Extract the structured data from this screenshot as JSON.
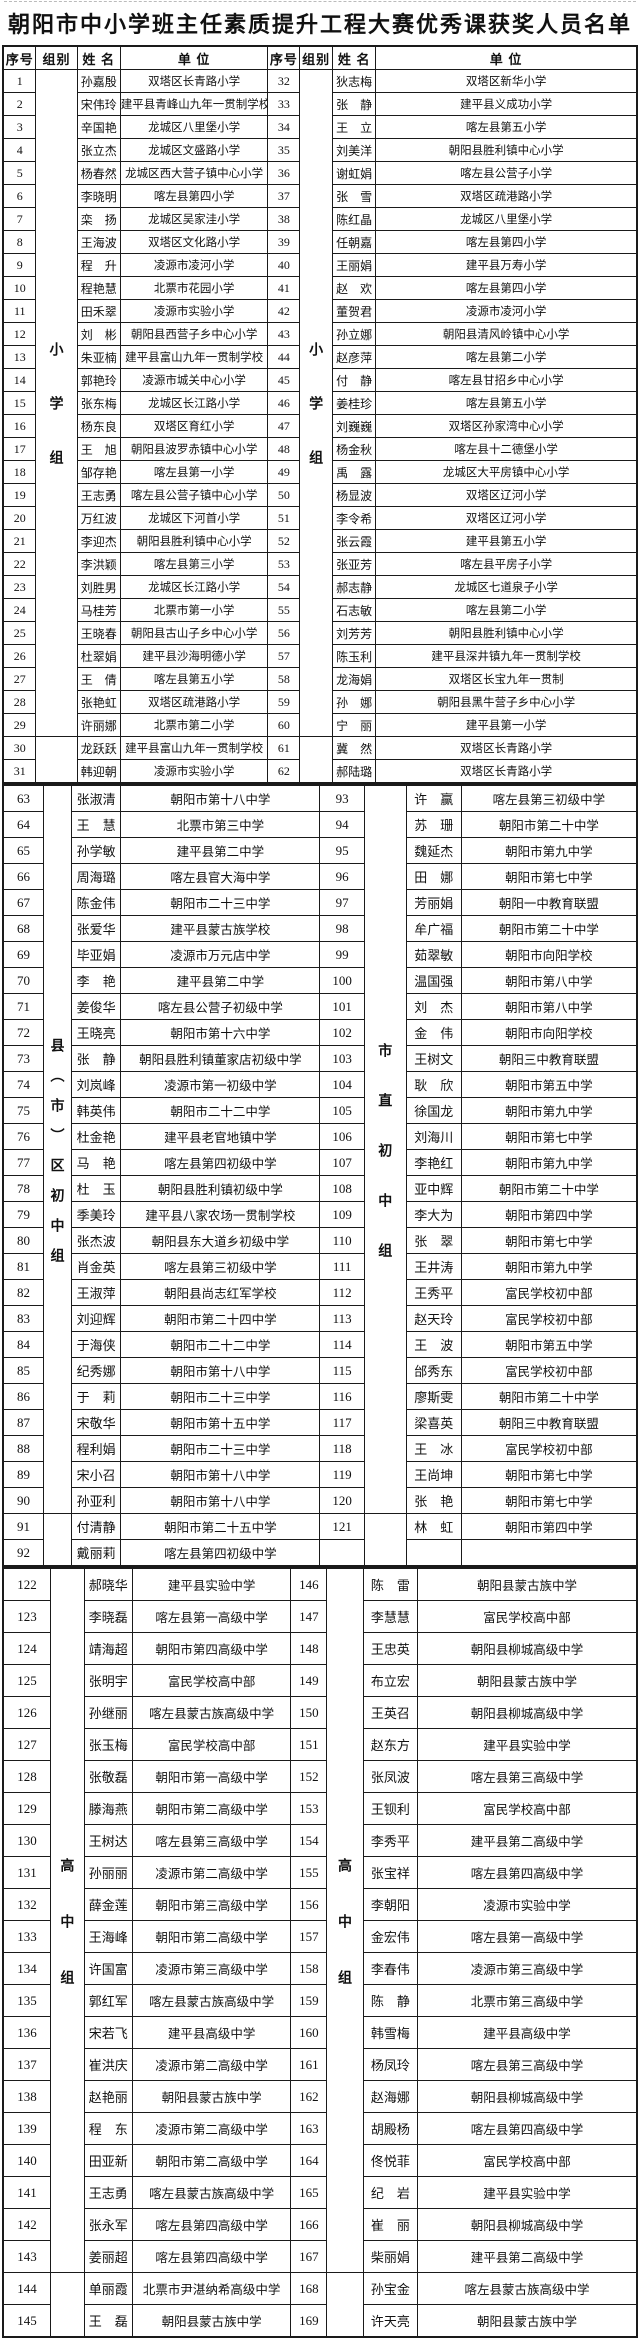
{
  "title": "朝阳市中小学班主任素质提升工程大赛优秀课获奖人员名单",
  "headers": {
    "no": "序号",
    "group": "组别",
    "name": "姓  名",
    "unit": "单   位"
  },
  "colors": {
    "border": "#1a1a1a",
    "text": "#111111",
    "background": "#ffffff"
  },
  "sections": [
    {
      "group_left": "小学组",
      "group_right": "小学组",
      "left_span": 29,
      "right_span": 29,
      "rows": [
        [
          "1",
          "孙嘉殷",
          "双塔区长青路小学",
          "32",
          "狄志梅",
          "双塔区新华小学"
        ],
        [
          "2",
          "宋伟玲",
          "建平县青峰山九年一贯制学校",
          "33",
          "张　静",
          "建平县义成功小学"
        ],
        [
          "3",
          "辛国艳",
          "龙城区八里堡小学",
          "34",
          "王　立",
          "喀左县第五小学"
        ],
        [
          "4",
          "张立杰",
          "龙城区文盛路小学",
          "35",
          "刘美洋",
          "朝阳县胜利镇中心小学"
        ],
        [
          "5",
          "杨春然",
          "龙城区西大营子镇中心小学",
          "36",
          "谢虹娟",
          "喀左县公营子小学"
        ],
        [
          "6",
          "李晓明",
          "喀左县第四小学",
          "37",
          "张　雪",
          "双塔区疏港路小学"
        ],
        [
          "7",
          "栾　扬",
          "龙城区吴家洼小学",
          "38",
          "陈红晶",
          "龙城区八里堡小学"
        ],
        [
          "8",
          "王海波",
          "双塔区文化路小学",
          "39",
          "任朝嘉",
          "喀左县第四小学"
        ],
        [
          "9",
          "程　升",
          "凌源市凌河小学",
          "40",
          "王丽娟",
          "建平县万寿小学"
        ],
        [
          "10",
          "程艳慧",
          "北票市花园小学",
          "41",
          "赵　欢",
          "喀左县第四小学"
        ],
        [
          "11",
          "田禾翠",
          "凌源市实验小学",
          "42",
          "董贺君",
          "凌源市凌河小学"
        ],
        [
          "12",
          "刘　彬",
          "朝阳县西营子乡中心小学",
          "43",
          "孙立娜",
          "朝阳县清风岭镇中心小学"
        ],
        [
          "13",
          "朱亚楠",
          "建平县富山九年一贯制学校",
          "44",
          "赵彦萍",
          "喀左县第二小学"
        ],
        [
          "14",
          "郭艳玲",
          "凌源市城关中心小学",
          "45",
          "付　静",
          "喀左县甘招乡中心小学"
        ],
        [
          "15",
          "张东梅",
          "龙城区长江路小学",
          "46",
          "姜桂珍",
          "喀左县第五小学"
        ],
        [
          "16",
          "杨东良",
          "双塔区育红小学",
          "47",
          "刘巍巍",
          "双塔区孙家湾中心小学"
        ],
        [
          "17",
          "王　旭",
          "朝阳县波罗赤镇中心小学",
          "48",
          "杨金秋",
          "喀左县十二德堡小学"
        ],
        [
          "18",
          "邹存艳",
          "喀左县第一小学",
          "49",
          "禹　露",
          "龙城区大平房镇中心小学"
        ],
        [
          "19",
          "王志勇",
          "喀左县公营子镇中心小学",
          "50",
          "杨显波",
          "双塔区辽河小学"
        ],
        [
          "20",
          "万红波",
          "龙城区下河首小学",
          "51",
          "李令希",
          "双塔区辽河小学"
        ],
        [
          "21",
          "李迎杰",
          "朝阳县胜利镇中心小学",
          "52",
          "张云霞",
          "建平县第五小学"
        ],
        [
          "22",
          "李洪颖",
          "喀左县第三小学",
          "53",
          "张亚芳",
          "喀左县平房子小学"
        ],
        [
          "23",
          "刘胜男",
          "龙城区长江路小学",
          "54",
          "郝志静",
          "龙城区七道泉子小学"
        ],
        [
          "24",
          "马桂芳",
          "北票市第一小学",
          "55",
          "石志敏",
          "喀左县第二小学"
        ],
        [
          "25",
          "王晓春",
          "朝阳县古山子乡中心小学",
          "56",
          "刘芳芳",
          "朝阳县胜利镇中心小学"
        ],
        [
          "26",
          "杜翠娟",
          "建平县沙海明德小学",
          "57",
          "陈玉利",
          "建平县深井镇九年一贯制学校"
        ],
        [
          "27",
          "王　倩",
          "喀左县第五小学",
          "58",
          "龙海娟",
          "双塔区长宝九年一贯制"
        ],
        [
          "28",
          "张艳虹",
          "双塔区疏港路小学",
          "59",
          "孙　娜",
          "朝阳县黑牛营子乡中心小学"
        ],
        [
          "29",
          "许丽娜",
          "北票市第二小学",
          "60",
          "宁　丽",
          "建平县第一小学"
        ],
        [
          "30",
          "龙跃跃",
          "建平县富山九年一贯制学校",
          "61",
          "冀　然",
          "双塔区长青路小学"
        ],
        [
          "31",
          "韩迎朝",
          "凌源市实验小学",
          "62",
          "郝陆璐",
          "双塔区长青路小学"
        ]
      ]
    },
    {
      "group_left": "县（市）区初中组",
      "group_right": "市直初中组",
      "left_span": 28,
      "right_span": 28,
      "rows": [
        [
          "63",
          "张淑清",
          "朝阳市第十八中学",
          "93",
          "许　赢",
          "喀左县第三初级中学"
        ],
        [
          "64",
          "王　慧",
          "北票市第三中学",
          "94",
          "苏　珊",
          "朝阳市第二十中学"
        ],
        [
          "65",
          "孙学敏",
          "建平县第二中学",
          "95",
          "魏延杰",
          "朝阳市第九中学"
        ],
        [
          "66",
          "周海璐",
          "喀左县官大海中学",
          "96",
          "田　娜",
          "朝阳市第七中学"
        ],
        [
          "67",
          "陈金伟",
          "朝阳市二十三中学",
          "97",
          "芳丽娟",
          "朝阳一中教育联盟"
        ],
        [
          "68",
          "张爱华",
          "建平县蒙古族学校",
          "98",
          "牟广福",
          "朝阳市第二十中学"
        ],
        [
          "69",
          "毕亚娟",
          "凌源市万元店中学",
          "99",
          "茹翠敏",
          "朝阳市向阳学校"
        ],
        [
          "70",
          "李　艳",
          "建平县第二中学",
          "100",
          "温国强",
          "朝阳市第八中学"
        ],
        [
          "71",
          "姜俊华",
          "喀左县公营子初级中学",
          "101",
          "刘　杰",
          "朝阳市第八中学"
        ],
        [
          "72",
          "王晓亮",
          "朝阳市第十六中学",
          "102",
          "金　伟",
          "朝阳市向阳学校"
        ],
        [
          "73",
          "张　静",
          "朝阳县胜利镇董家店初级中学",
          "103",
          "王树文",
          "朝阳三中教育联盟"
        ],
        [
          "74",
          "刘岚峰",
          "凌源市第一初级中学",
          "104",
          "耿　欣",
          "朝阳市第五中学"
        ],
        [
          "75",
          "韩英伟",
          "朝阳市二十二中学",
          "105",
          "徐国龙",
          "朝阳市第九中学"
        ],
        [
          "76",
          "杜金艳",
          "建平县老官地镇中学",
          "106",
          "刘海川",
          "朝阳市第七中学"
        ],
        [
          "77",
          "马　艳",
          "喀左县第四初级中学",
          "107",
          "李艳红",
          "朝阳市第九中学"
        ],
        [
          "78",
          "杜　玉",
          "朝阳县胜利镇初级中学",
          "108",
          "亚中辉",
          "朝阳市第二十中学"
        ],
        [
          "79",
          "季美玲",
          "建平县八家农场一贯制学校",
          "109",
          "李大为",
          "朝阳市第四中学"
        ],
        [
          "80",
          "张杰波",
          "朝阳县东大道乡初级中学",
          "110",
          "张　翠",
          "朝阳市第七中学"
        ],
        [
          "81",
          "肖金英",
          "喀左县第三初级中学",
          "111",
          "王井涛",
          "朝阳市第九中学"
        ],
        [
          "82",
          "王淑萍",
          "朝阳县尚志红军学校",
          "112",
          "王秀平",
          "富民学校初中部"
        ],
        [
          "83",
          "刘迎辉",
          "朝阳市第二十四中学",
          "113",
          "赵天玲",
          "富民学校初中部"
        ],
        [
          "84",
          "于海侠",
          "朝阳市二十二中学",
          "114",
          "王　波",
          "朝阳市第五中学"
        ],
        [
          "85",
          "纪秀娜",
          "朝阳市第十八中学",
          "115",
          "邰秀东",
          "富民学校初中部"
        ],
        [
          "86",
          "于　莉",
          "朝阳市二十三中学",
          "116",
          "廖斯雯",
          "朝阳市第二十中学"
        ],
        [
          "87",
          "宋敬华",
          "朝阳市第十五中学",
          "117",
          "梁喜英",
          "朝阳三中教育联盟"
        ],
        [
          "88",
          "程利娟",
          "朝阳市二十三中学",
          "118",
          "王　冰",
          "富民学校初中部"
        ],
        [
          "89",
          "宋小召",
          "朝阳市第十八中学",
          "119",
          "王尚坤",
          "朝阳市第七中学"
        ],
        [
          "90",
          "孙亚利",
          "朝阳市第十八中学",
          "120",
          "张　艳",
          "朝阳市第七中学"
        ],
        [
          "91",
          "付清静",
          "朝阳市第二十五中学",
          "121",
          "林　虹",
          "朝阳市第四中学"
        ],
        [
          "92",
          "戴丽莉",
          "喀左县第四初级中学",
          "",
          "",
          ""
        ]
      ]
    },
    {
      "group_left": "高中组",
      "group_right": "高中组",
      "left_span": 22,
      "right_span": 22,
      "rows": [
        [
          "122",
          "郝晓华",
          "建平县实验中学",
          "146",
          "陈　雷",
          "朝阳县蒙古族中学"
        ],
        [
          "123",
          "李晓磊",
          "喀左县第一高级中学",
          "147",
          "李慧慧",
          "富民学校高中部"
        ],
        [
          "124",
          "靖海超",
          "朝阳市第四高级中学",
          "148",
          "王忠英",
          "朝阳县柳城高级中学"
        ],
        [
          "125",
          "张明宇",
          "富民学校高中部",
          "149",
          "布立宏",
          "朝阳县蒙古族中学"
        ],
        [
          "126",
          "孙继丽",
          "喀左县蒙古族高级中学",
          "150",
          "王英召",
          "朝阳县柳城高级中学"
        ],
        [
          "127",
          "张玉梅",
          "富民学校高中部",
          "151",
          "赵东方",
          "建平县实验中学"
        ],
        [
          "128",
          "张敬磊",
          "朝阳市第一高级中学",
          "152",
          "张凤波",
          "喀左县第三高级中学"
        ],
        [
          "129",
          "滕海燕",
          "朝阳市第二高级中学",
          "153",
          "王钡利",
          "富民学校高中部"
        ],
        [
          "130",
          "王树达",
          "喀左县第三高级中学",
          "154",
          "李秀平",
          "建平县第二高级中学"
        ],
        [
          "131",
          "孙丽丽",
          "凌源市第二高级中学",
          "155",
          "张宝祥",
          "喀左县第四高级中学"
        ],
        [
          "132",
          "薛金莲",
          "朝阳市第三高级中学",
          "156",
          "李朝阳",
          "凌源市实验中学"
        ],
        [
          "133",
          "王海峰",
          "朝阳市第二高级中学",
          "157",
          "金宏伟",
          "喀左县第一高级中学"
        ],
        [
          "134",
          "许国富",
          "凌源市第三高级中学",
          "158",
          "李春伟",
          "凌源市第三高级中学"
        ],
        [
          "135",
          "郭红军",
          "喀左县蒙古族高级中学",
          "159",
          "陈　静",
          "北票市第三高级中学"
        ],
        [
          "136",
          "宋若飞",
          "建平县高级中学",
          "160",
          "韩雪梅",
          "建平县高级中学"
        ],
        [
          "137",
          "崔洪庆",
          "凌源市第二高级中学",
          "161",
          "杨凤玲",
          "喀左县第三高级中学"
        ],
        [
          "138",
          "赵艳丽",
          "朝阳县蒙古族中学",
          "162",
          "赵海娜",
          "朝阳县柳城高级中学"
        ],
        [
          "139",
          "程　东",
          "凌源市第二高级中学",
          "163",
          "胡殿杨",
          "喀左县第四高级中学"
        ],
        [
          "140",
          "田亚新",
          "朝阳市第二高级中学",
          "164",
          "佟悦菲",
          "富民学校高中部"
        ],
        [
          "141",
          "王志勇",
          "喀左县蒙古族高级中学",
          "165",
          "纪　岩",
          "建平县实验中学"
        ],
        [
          "142",
          "张永军",
          "喀左县第四高级中学",
          "166",
          "崔　丽",
          "朝阳县柳城高级中学"
        ],
        [
          "143",
          "姜丽超",
          "喀左县第四高级中学",
          "167",
          "柴丽娟",
          "建平县第二高级中学"
        ],
        [
          "144",
          "单丽霞",
          "北票市尹湛纳希高级中学",
          "168",
          "孙宝金",
          "喀左县蒙古族高级中学"
        ],
        [
          "145",
          "王　磊",
          "朝阳县蒙古族中学",
          "169",
          "许天亮",
          "朝阳县蒙古族中学"
        ]
      ]
    }
  ]
}
